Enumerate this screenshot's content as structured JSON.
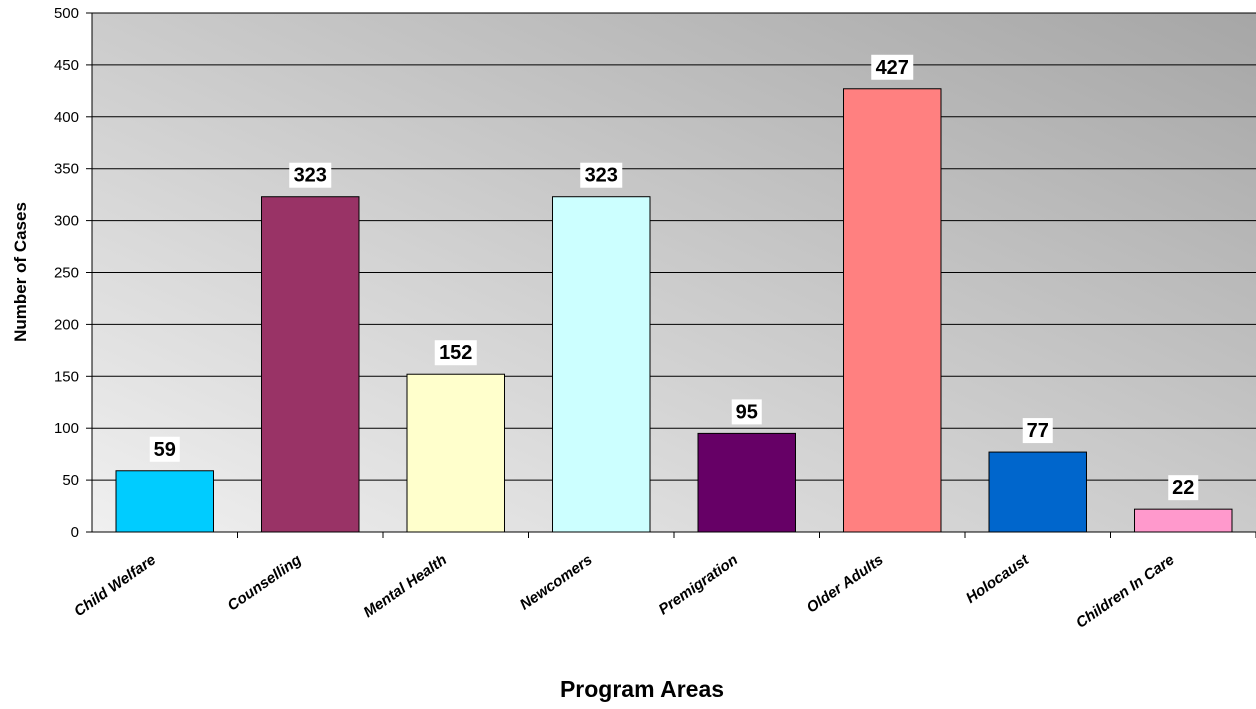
{
  "chart_data": {
    "type": "bar",
    "title": "",
    "xlabel": "Program Areas",
    "ylabel": "Number of Cases",
    "ylim": [
      0,
      500
    ],
    "yticks": [
      0,
      50,
      100,
      150,
      200,
      250,
      300,
      350,
      400,
      450,
      500
    ],
    "grid": true,
    "categories": [
      "Child Welfare",
      "Counselling",
      "Mental Health",
      "Newcomers",
      "Premigration",
      "Older Adults",
      "Holocaust",
      "Children In Care"
    ],
    "values": [
      59,
      323,
      152,
      323,
      95,
      427,
      77,
      22
    ],
    "data_labels": [
      "59",
      "323",
      "152",
      "323",
      "95",
      "427",
      "77",
      "22"
    ],
    "colors": [
      "#00CCFF",
      "#993366",
      "#FFFFCC",
      "#CCFFFF",
      "#660066",
      "#FF8080",
      "#0066CC",
      "#FF99CC"
    ],
    "plot_background": {
      "gradient_from": "#f0f0f0",
      "gradient_to": "#a6a6a6"
    }
  }
}
